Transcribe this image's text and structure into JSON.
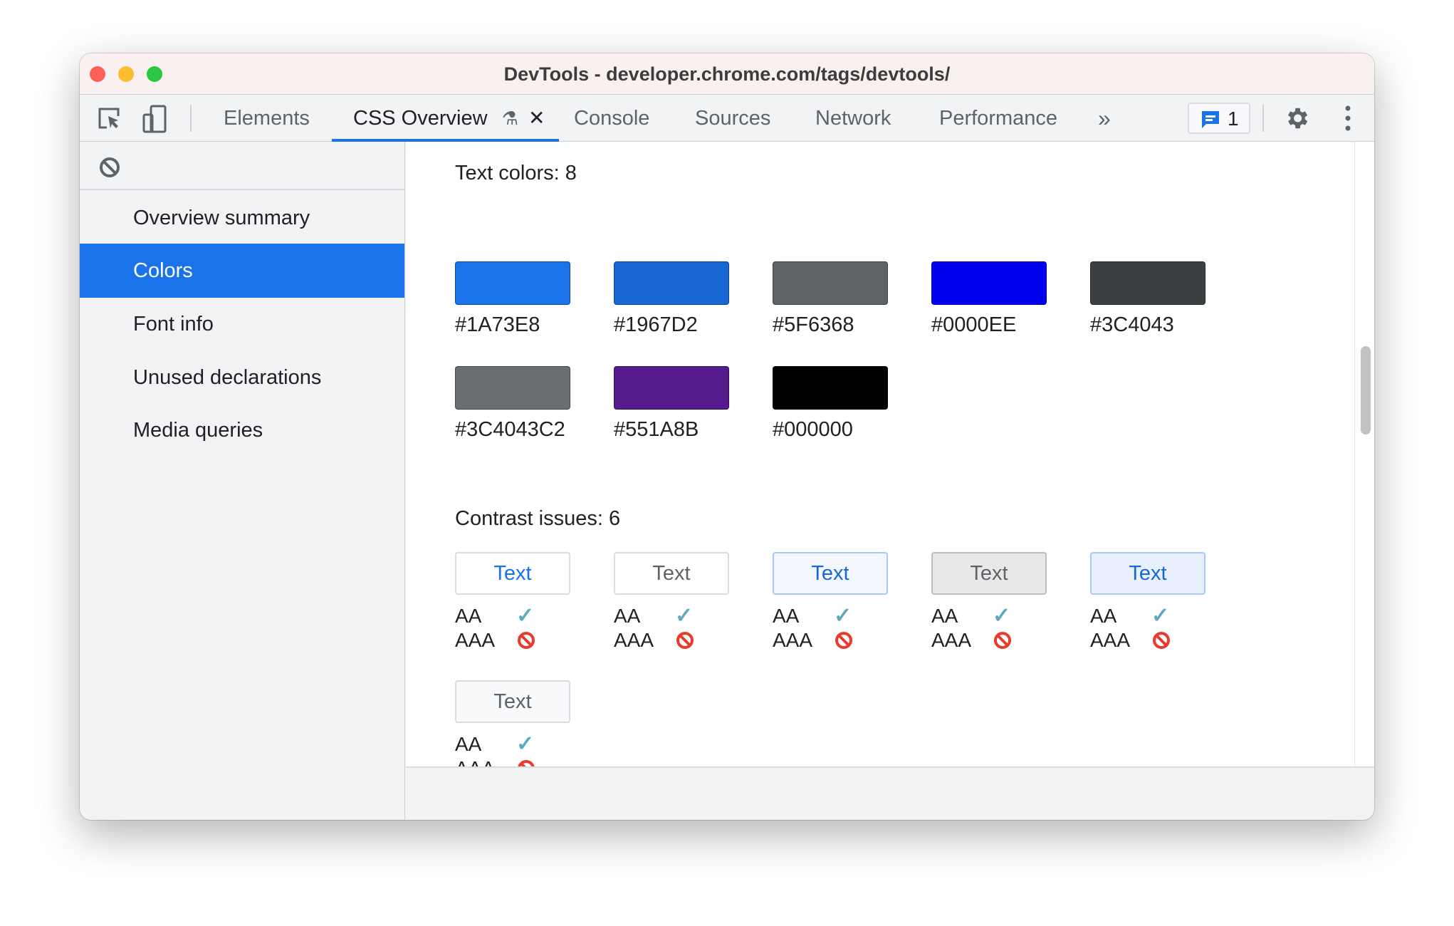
{
  "window": {
    "title": "DevTools - developer.chrome.com/tags/devtools/"
  },
  "toolbar": {
    "tabs": [
      {
        "label": "Elements"
      },
      {
        "label": "CSS Overview",
        "active": true
      },
      {
        "label": "Console"
      },
      {
        "label": "Sources"
      },
      {
        "label": "Network"
      },
      {
        "label": "Performance"
      }
    ],
    "more_icon": "chevron-double-right-icon",
    "issues_count": "1",
    "accent": "#1A73E8"
  },
  "sidebar": {
    "items": [
      {
        "label": "Overview summary"
      },
      {
        "label": "Colors",
        "selected": true
      },
      {
        "label": "Font info"
      },
      {
        "label": "Unused declarations"
      },
      {
        "label": "Media queries"
      }
    ]
  },
  "main": {
    "text_colors_heading": "Text colors: 8",
    "text_colors": [
      {
        "hex": "#1A73E8",
        "label": "#1A73E8"
      },
      {
        "hex": "#1967D2",
        "label": "#1967D2"
      },
      {
        "hex": "#5F6368",
        "label": "#5F6368"
      },
      {
        "hex": "#0000EE",
        "label": "#0000EE"
      },
      {
        "hex": "#3C4043",
        "label": "#3C4043"
      },
      {
        "hex": "#3C4043C2",
        "label": "#3C4043C2"
      },
      {
        "hex": "#551A8B",
        "label": "#551A8B"
      },
      {
        "hex": "#000000",
        "label": "#000000"
      }
    ],
    "contrast_heading": "Contrast issues: 6",
    "contrast_issues": [
      {
        "text": "Text",
        "fg": "#1A73E8",
        "bg": "#FFFFFF",
        "border": "#DADCE0",
        "aa": "AA",
        "aa_pass": true,
        "aaa": "AAA",
        "aaa_pass": false
      },
      {
        "text": "Text",
        "fg": "#5F6368",
        "bg": "#FFFFFF",
        "border": "#DADCE0",
        "aa": "AA",
        "aa_pass": true,
        "aaa": "AAA",
        "aaa_pass": false
      },
      {
        "text": "Text",
        "fg": "#1967D2",
        "bg": "#F4F8FE",
        "border": "#A8C7FA",
        "aa": "AA",
        "aa_pass": true,
        "aaa": "AAA",
        "aaa_pass": false
      },
      {
        "text": "Text",
        "fg": "#5F6368",
        "bg": "#E8E8E8",
        "border": "#BDBDBD",
        "aa": "AA",
        "aa_pass": true,
        "aaa": "AAA",
        "aaa_pass": false
      },
      {
        "text": "Text",
        "fg": "#1967D2",
        "bg": "#E8F0FE",
        "border": "#A8C7FA",
        "aa": "AA",
        "aa_pass": true,
        "aaa": "AAA",
        "aaa_pass": false
      },
      {
        "text": "Text",
        "fg": "#5F6368",
        "bg": "#F8F9FA",
        "border": "#DADCE0",
        "aa": "AA",
        "aa_pass": true,
        "aaa": "AAA",
        "aaa_pass": false
      }
    ]
  }
}
